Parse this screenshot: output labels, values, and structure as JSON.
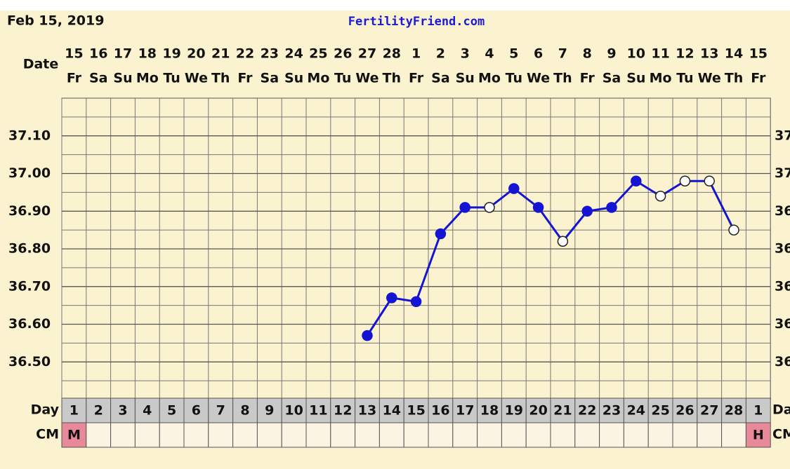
{
  "chart_data": {
    "type": "line",
    "title": "Feb 15, 2019",
    "site": "FertilityFriend.com",
    "row_labels": {
      "date": "Date",
      "day": "Day",
      "cm": "CM"
    },
    "categories": [
      "15",
      "16",
      "17",
      "18",
      "19",
      "20",
      "21",
      "22",
      "23",
      "24",
      "25",
      "26",
      "27",
      "28",
      "1",
      "2",
      "3",
      "4",
      "5",
      "6",
      "7",
      "8",
      "9",
      "10",
      "11",
      "12",
      "13",
      "14",
      "15"
    ],
    "weekdays": [
      "Fr",
      "Sa",
      "Su",
      "Mo",
      "Tu",
      "We",
      "Th",
      "Fr",
      "Sa",
      "Su",
      "Mo",
      "Tu",
      "We",
      "Th",
      "Fr",
      "Sa",
      "Su",
      "Mo",
      "Tu",
      "We",
      "Th",
      "Fr",
      "Sa",
      "Su",
      "Mo",
      "Tu",
      "We",
      "Th",
      "Fr"
    ],
    "cycle_days": [
      1,
      2,
      3,
      4,
      5,
      6,
      7,
      8,
      9,
      10,
      11,
      12,
      13,
      14,
      15,
      16,
      17,
      18,
      19,
      20,
      21,
      22,
      23,
      24,
      25,
      26,
      27,
      28,
      1
    ],
    "cervical_mucus": [
      "M",
      null,
      null,
      null,
      null,
      null,
      null,
      null,
      null,
      null,
      null,
      null,
      null,
      null,
      null,
      null,
      null,
      null,
      null,
      null,
      null,
      null,
      null,
      null,
      null,
      null,
      null,
      null,
      "H"
    ],
    "series": [
      {
        "color": "#1414d2",
        "values": [
          null,
          null,
          null,
          null,
          null,
          null,
          null,
          null,
          null,
          null,
          null,
          null,
          36.57,
          36.67,
          36.66,
          36.84,
          36.91,
          36.91,
          36.96,
          36.91,
          36.82,
          36.9,
          36.91,
          36.98,
          36.94,
          36.98,
          36.98,
          36.85,
          null
        ],
        "hollow": [
          false,
          false,
          false,
          false,
          false,
          false,
          false,
          false,
          false,
          false,
          false,
          false,
          false,
          false,
          false,
          false,
          false,
          true,
          false,
          false,
          true,
          false,
          false,
          false,
          true,
          true,
          true,
          true,
          false
        ]
      }
    ],
    "ylim": [
      36.4,
      37.2
    ],
    "yticks": [
      {
        "value": 36.5,
        "label": "36.50"
      },
      {
        "value": 36.6,
        "label": "36.60"
      },
      {
        "value": 36.7,
        "label": "36.70"
      },
      {
        "value": 36.8,
        "label": "36.80"
      },
      {
        "value": 36.9,
        "label": "36.90"
      },
      {
        "value": 37,
        "label": "37.00"
      },
      {
        "value": 37.1,
        "label": "37.10"
      }
    ],
    "grid": true
  }
}
